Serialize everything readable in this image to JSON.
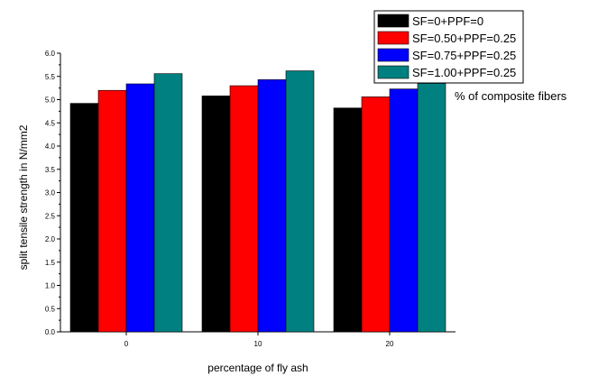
{
  "chart_data": {
    "type": "bar",
    "categories": [
      "0",
      "10",
      "20"
    ],
    "series": [
      {
        "name": "SF=0+PPF=0",
        "color": "#000000",
        "values": [
          4.92,
          5.08,
          4.82
        ]
      },
      {
        "name": "SF=0.50+PPF=0.25",
        "color": "#ff0000",
        "values": [
          5.2,
          5.3,
          5.06
        ]
      },
      {
        "name": "SF=0.75+PPF=0.25",
        "color": "#0000ff",
        "values": [
          5.34,
          5.43,
          5.23
        ]
      },
      {
        "name": "SF=1.00+PPF=0.25",
        "color": "#008080",
        "values": [
          5.56,
          5.62,
          5.35
        ]
      }
    ],
    "xlabel": "percentage of fly ash",
    "ylabel": "split tensile strength in N/mm2",
    "ylim": [
      0,
      6.0
    ],
    "yticks": [
      "0.0",
      "0.5",
      "1.0",
      "1.5",
      "2.0",
      "2.5",
      "3.0",
      "3.5",
      "4.0",
      "4.5",
      "5.0",
      "5.5",
      "6.0"
    ],
    "legend_placement": "top-right",
    "legend_note": "% of composite fibers",
    "grid": false
  }
}
